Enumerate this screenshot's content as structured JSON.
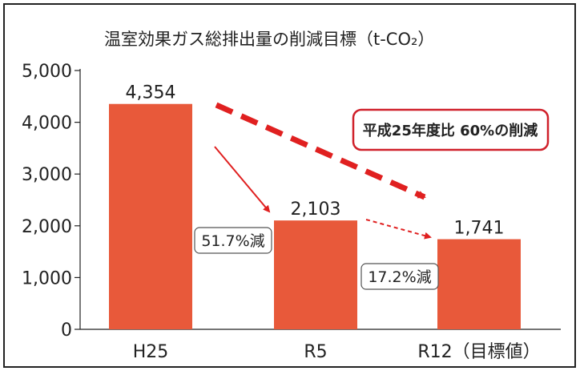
{
  "chart_data": {
    "type": "bar",
    "title": "温室効果ガス総排出量の削減目標（t-CO₂）",
    "categories": [
      "H25",
      "R5",
      "R12（目標値）"
    ],
    "values": [
      4354,
      2103,
      1741
    ],
    "value_labels": [
      "4,354",
      "2,103",
      "1,741"
    ],
    "ylim": [
      0,
      5000
    ],
    "yticks": [
      0,
      1000,
      2000,
      3000,
      4000,
      5000
    ],
    "ytick_labels": [
      "0",
      "1,000",
      "2,000",
      "3,000",
      "4,000",
      "5,000"
    ],
    "grid": false,
    "bar_color": "#E8593A",
    "annotations": {
      "reduction_1": "51.7%減",
      "reduction_2": "17.2%減",
      "target_badge": "平成25年度比 60%の削減"
    },
    "arrow_color": "#E02020",
    "badge_border_color": "#D0202A"
  }
}
